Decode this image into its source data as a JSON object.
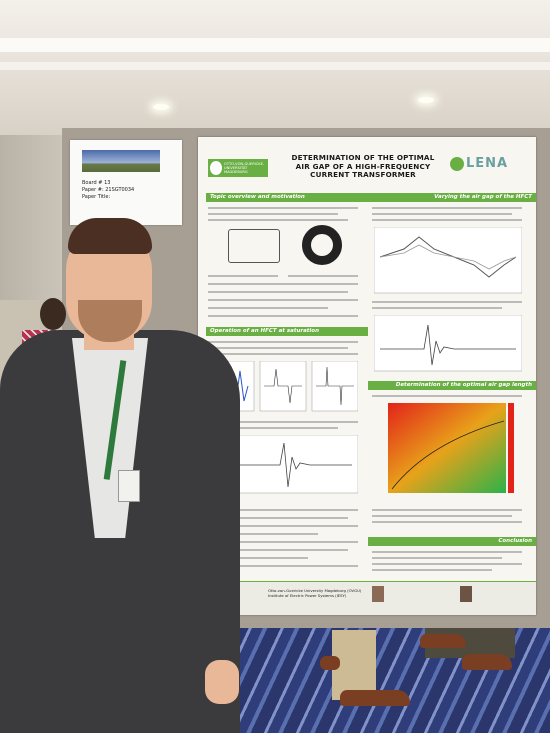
{
  "card": {
    "board": "Board # 13",
    "paper": "Paper #: 21SGT0034",
    "paper_title_label": "Paper Title:"
  },
  "poster": {
    "title_line1": "DETERMINATION OF THE OPTIMAL",
    "title_line2": "AIR GAP OF A HIGH-FREQUENCY",
    "title_line3": "CURRENT TRANSFORMER",
    "uni_logo": "OTTO-VON-GUERICKE-UNIVERSITÄT MAGDEBURG",
    "lab_logo": "LENA",
    "sections": {
      "overview": "Topic overview and motivation",
      "saturation": "Operation of an HFCT at saturation",
      "varying": "Varying the air gap of the HFCT",
      "optimal": "Determination of the optimal air gap length",
      "conclusion": "Conclusion"
    },
    "footer_affiliation": "Otto-von-Guericke University Magdeburg (OVGU) Institute of Electric Power Systems (IESY)"
  },
  "colors": {
    "section_green": "#6aaf44",
    "heatmap_red": "#e2231a",
    "heatmap_green": "#2bb24a"
  }
}
